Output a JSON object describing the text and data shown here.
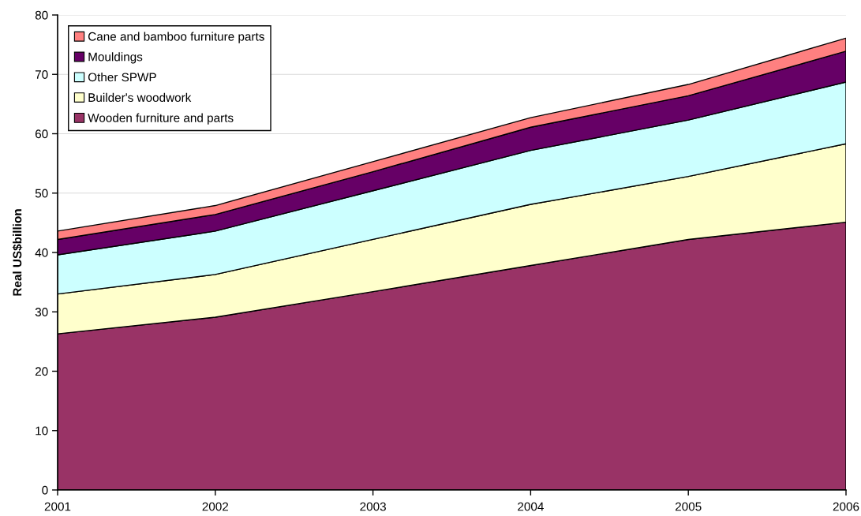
{
  "chart_data": {
    "type": "area",
    "stacked": true,
    "ylabel": "Real US$billion",
    "x": [
      2001,
      2002,
      2003,
      2004,
      2005,
      2006
    ],
    "xlim": [
      2001,
      2006
    ],
    "xticks": [
      2001,
      2002,
      2003,
      2004,
      2005,
      2006
    ],
    "ylim": [
      0,
      80
    ],
    "yticks": [
      0,
      10,
      20,
      30,
      40,
      50,
      60,
      70,
      80
    ],
    "grid": "y",
    "legend": "top left",
    "series": [
      {
        "name": "Wooden furniture and parts",
        "color": "#993366",
        "values": [
          26.3,
          29.1,
          33.4,
          37.8,
          42.2,
          45.1
        ]
      },
      {
        "name": "Builder's woodwork",
        "color": "#ffffcc",
        "values": [
          6.7,
          7.2,
          8.8,
          10.3,
          10.6,
          13.2
        ]
      },
      {
        "name": "Other SPWP",
        "color": "#ccffff",
        "values": [
          6.6,
          7.3,
          8.2,
          9.1,
          9.5,
          10.4
        ]
      },
      {
        "name": "Mouldings",
        "color": "#660066",
        "values": [
          2.6,
          2.8,
          3.2,
          3.9,
          4.1,
          5.2
        ]
      },
      {
        "name": "Cane and bamboo furniture parts",
        "color": "#ff8080",
        "values": [
          1.4,
          1.5,
          1.7,
          1.6,
          1.9,
          2.2
        ]
      }
    ]
  }
}
